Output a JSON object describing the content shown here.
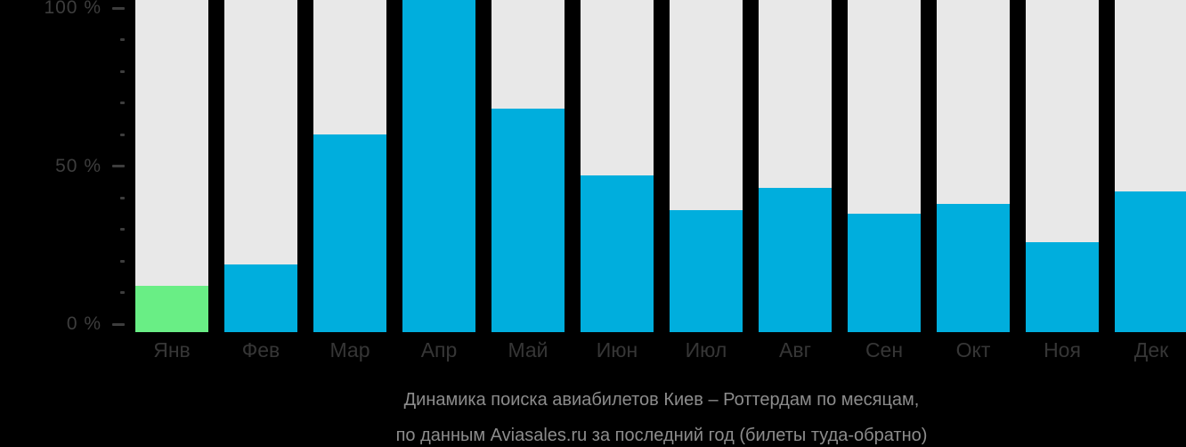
{
  "chart_data": {
    "type": "bar",
    "categories": [
      "Янв",
      "Фев",
      "Мар",
      "Апр",
      "Май",
      "Июн",
      "Июл",
      "Авг",
      "Сен",
      "Окт",
      "Ноя",
      "Дек"
    ],
    "values": [
      12,
      19,
      60,
      100,
      68,
      47,
      36,
      43,
      35,
      38,
      26,
      42
    ],
    "value_unit": "%",
    "highlight_index": 0,
    "title": "Динамика поиска авиабилетов Киев – Роттердам по месяцам, по данным Aviasales.ru за последний год (билеты туда-обратно)",
    "xlabel": "",
    "ylabel": "",
    "ylim": [
      0,
      100
    ],
    "yticks_major": [
      {
        "value": 0,
        "label": "0 %"
      },
      {
        "value": 50,
        "label": "50 %"
      },
      {
        "value": 100,
        "label": "100 %"
      }
    ],
    "yticks_minor": [
      10,
      20,
      30,
      40,
      60,
      70,
      80,
      90
    ],
    "grid": "off",
    "legend": "none"
  },
  "caption": {
    "line1": "Динамика поиска авиабилетов Киев – Роттердам по месяцам,",
    "line2": "по данным Aviasales.ru за последний год (билеты туда-обратно)"
  },
  "colors": {
    "background": "#000000",
    "bar_fill": "#00aedd",
    "bar_highlight": "#69ee85",
    "bar_track": "#e8e8e8",
    "axis_text": "#3d3d3d",
    "caption_text": "#8c8c8c"
  }
}
